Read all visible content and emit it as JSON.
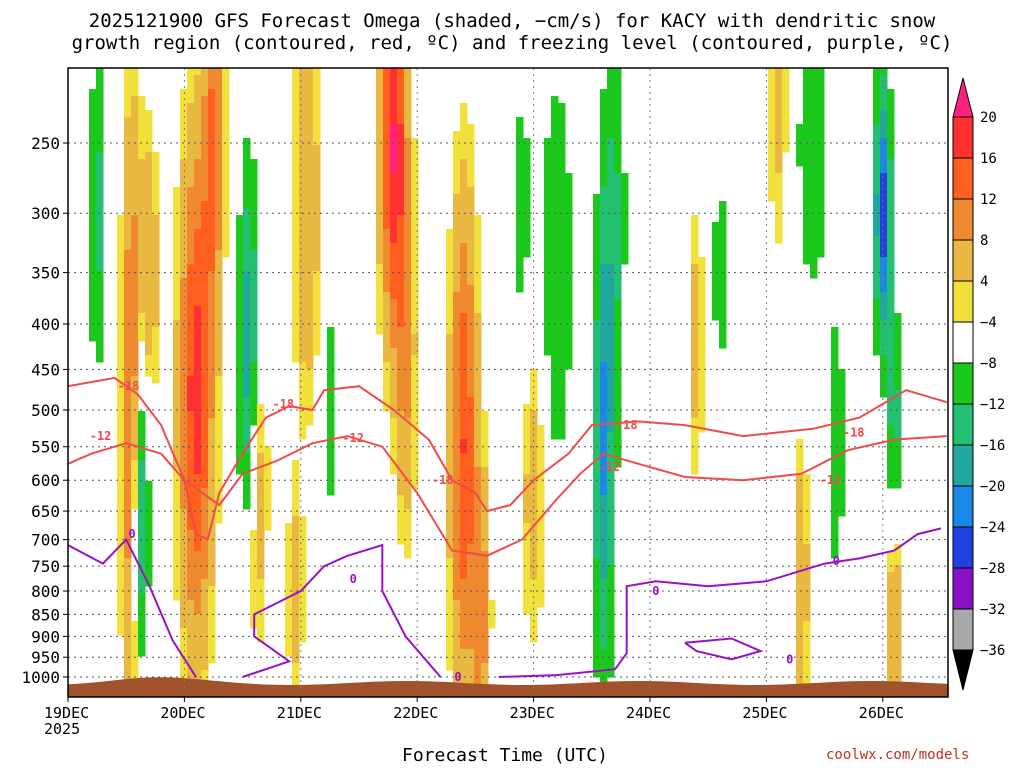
{
  "title": {
    "line1": "2025121900 GFS Forecast Omega (shaded, −cm/s) for KACY with dendritic snow",
    "line2": "growth region (contoured, red, ºC) and freezing level (contoured, purple, ºC)"
  },
  "footer": {
    "x_title": "Forecast Time (UTC)",
    "credit": "coolwx.com/models"
  },
  "colors": {
    "snow_region": "#f04a4a",
    "freezing_level": "#9a10c8",
    "terrain": "#a0522d"
  },
  "chart_data": {
    "type": "heatmap",
    "title": "2025121900 GFS Forecast Omega (shaded, −cm/s) for KACY with dendritic snow growth region (contoured, red, ºC) and freezing level (contoured, purple, ºC)",
    "xlabel": "Forecast Time (UTC)",
    "ylabel": "",
    "x_ticks": [
      "19DEC\n2025",
      "20DEC",
      "21DEC",
      "22DEC",
      "23DEC",
      "24DEC",
      "25DEC",
      "26DEC"
    ],
    "x_range_days": [
      0,
      7.55
    ],
    "y_ticks": [
      250,
      300,
      350,
      400,
      450,
      500,
      550,
      600,
      650,
      700,
      750,
      800,
      850,
      900,
      950,
      1000
    ],
    "y_range_hpa": [
      200,
      1020
    ],
    "grid": true,
    "colorbar": {
      "labels": [
        "20",
        "16",
        "12",
        "8",
        "4",
        "−4",
        "−8",
        "−12",
        "−16",
        "−20",
        "−24",
        "−28",
        "−32",
        "−36"
      ],
      "colors": [
        "#ff2080",
        "#ff3030",
        "#ff6020",
        "#f08a30",
        "#e8b840",
        "#f2e13c",
        "#ffffff",
        "#1cc81c",
        "#22c070",
        "#20a8a0",
        "#1a88e8",
        "#2040e0",
        "#8a10c8",
        "#a8a8a8",
        "#000000"
      ]
    },
    "contours": {
      "snow_levels_c": [
        -12,
        -18
      ],
      "freezing_level_c": [
        0
      ],
      "snow_label_points": [
        {
          "day": 0.52,
          "hpa": 470,
          "label": "-18"
        },
        {
          "day": 0.28,
          "hpa": 535,
          "label": "-12"
        },
        {
          "day": 1.85,
          "hpa": 492,
          "label": "-18"
        },
        {
          "day": 2.45,
          "hpa": 538,
          "label": "-12"
        },
        {
          "day": 3.22,
          "hpa": 600,
          "label": "-18"
        },
        {
          "day": 4.8,
          "hpa": 520,
          "label": "-18"
        },
        {
          "day": 4.65,
          "hpa": 580,
          "label": "-12"
        },
        {
          "day": 6.75,
          "hpa": 530,
          "label": "-18"
        },
        {
          "day": 6.55,
          "hpa": 600,
          "label": "-12"
        }
      ],
      "freezing_label_points": [
        {
          "day": 0.55,
          "hpa": 690,
          "label": "0"
        },
        {
          "day": 2.45,
          "hpa": 775,
          "label": "0"
        },
        {
          "day": 5.05,
          "hpa": 800,
          "label": "0"
        },
        {
          "day": 6.6,
          "hpa": 740,
          "label": "0"
        },
        {
          "day": 6.2,
          "hpa": 955,
          "label": "0"
        },
        {
          "day": 3.35,
          "hpa": 1000,
          "label": "0"
        }
      ]
    }
  }
}
